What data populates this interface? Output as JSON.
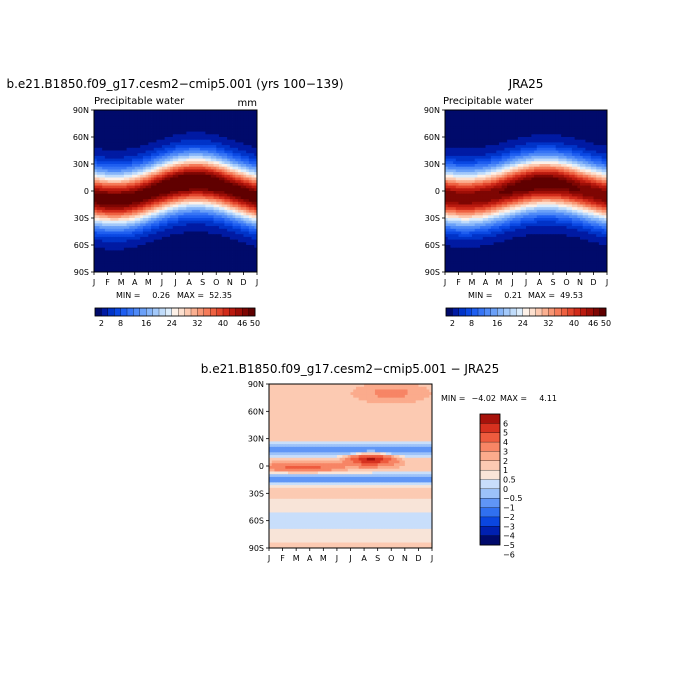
{
  "chart_data": [
    {
      "type": "heatmap",
      "title": "b.e21.B1850.f09_g17.cesm2−cmip5.001 (yrs 100−139)",
      "subtitle": "Precipitable water",
      "units": "mm",
      "x_ticks": [
        "J",
        "F",
        "M",
        "A",
        "M",
        "J",
        "J",
        "A",
        "S",
        "O",
        "N",
        "D",
        "J"
      ],
      "y_ticks": [
        "90N",
        "60N",
        "30N",
        "0",
        "30S",
        "60S",
        "90S"
      ],
      "ylim": [
        -90,
        90
      ],
      "stats": {
        "min_label": "MIN =",
        "min": "0.26",
        "max_label": "MAX =",
        "max": "52.35"
      },
      "colorbar": {
        "orientation": "horizontal",
        "levels": [
          2,
          4,
          6,
          8,
          10,
          12,
          14,
          16,
          18,
          20,
          22,
          24,
          26,
          28,
          30,
          32,
          34,
          36,
          38,
          40,
          42,
          44,
          46,
          48,
          50
        ],
        "labels": [
          "2",
          "8",
          "16",
          "24",
          "32",
          "40",
          "46",
          "50"
        ]
      },
      "model": {
        "eq_peak": 50,
        "eq_lat_amp": 10,
        "eq_phase_month": 7.5,
        "pole_min": 1
      }
    },
    {
      "type": "heatmap",
      "title": "JRA25",
      "subtitle": "Precipitable water",
      "x_ticks": [
        "J",
        "F",
        "M",
        "A",
        "M",
        "J",
        "J",
        "A",
        "S",
        "O",
        "N",
        "D",
        "J"
      ],
      "y_ticks": [
        "90N",
        "60N",
        "30N",
        "0",
        "30S",
        "60S",
        "90S"
      ],
      "ylim": [
        -90,
        90
      ],
      "stats": {
        "min_label": "MIN =",
        "min": "0.21",
        "max_label": "MAX =",
        "max": "49.53"
      },
      "colorbar": {
        "orientation": "horizontal",
        "levels": [
          2,
          4,
          6,
          8,
          10,
          12,
          14,
          16,
          18,
          20,
          22,
          24,
          26,
          28,
          30,
          32,
          34,
          36,
          38,
          40,
          42,
          44,
          46,
          48,
          50
        ],
        "labels": [
          "2",
          "8",
          "16",
          "24",
          "32",
          "40",
          "46",
          "50"
        ]
      },
      "model": {
        "eq_peak": 48,
        "eq_lat_amp": 8,
        "eq_phase_month": 7.5,
        "pole_min": 1
      }
    },
    {
      "type": "heatmap",
      "title": "b.e21.B1850.f09_g17.cesm2−cmip5.001 − JRA25",
      "x_ticks": [
        "J",
        "F",
        "M",
        "A",
        "M",
        "J",
        "J",
        "A",
        "S",
        "O",
        "N",
        "D",
        "J"
      ],
      "y_ticks": [
        "90N",
        "60N",
        "30N",
        "0",
        "30S",
        "60S",
        "90S"
      ],
      "ylim": [
        -90,
        90
      ],
      "stats": {
        "min_label": "MIN =",
        "min": "−4.02",
        "max_label": "MAX =",
        "max": "4.11"
      },
      "colorbar": {
        "orientation": "vertical",
        "levels": [
          -6,
          -5,
          -4,
          -3,
          -2,
          -1,
          -0.5,
          0,
          0.5,
          1,
          2,
          3,
          4,
          5,
          6
        ],
        "labels": [
          "6",
          "5",
          "4",
          "3",
          "2",
          "1",
          "0.5",
          "0",
          "−0.5",
          "−1",
          "−2",
          "−3",
          "−4",
          "−5",
          "−6"
        ]
      }
    }
  ],
  "colors": {
    "abs_palette": [
      "#000a6b",
      "#001aa3",
      "#0033c8",
      "#0a48e3",
      "#1e5ef0",
      "#3674f5",
      "#4f8af7",
      "#6aa0f8",
      "#86b5f9",
      "#a3c9fa",
      "#c0dcfb",
      "#dcedfc",
      "#fdf1e8",
      "#fde0cf",
      "#fcc9b0",
      "#fbb091",
      "#f89674",
      "#f57b59",
      "#ee6141",
      "#e2452c",
      "#d12b1a",
      "#ba1a0f",
      "#9e0e07",
      "#7e0603",
      "#600000"
    ],
    "diff_palette": [
      "#000a6b",
      "#0020b0",
      "#0a46e0",
      "#3070f0",
      "#6096f6",
      "#9cc2f9",
      "#c8defb",
      "#f8e4d8",
      "#fccab2",
      "#fbab8c",
      "#f78565",
      "#ee5b3e",
      "#d6311f",
      "#a7120b"
    ]
  }
}
